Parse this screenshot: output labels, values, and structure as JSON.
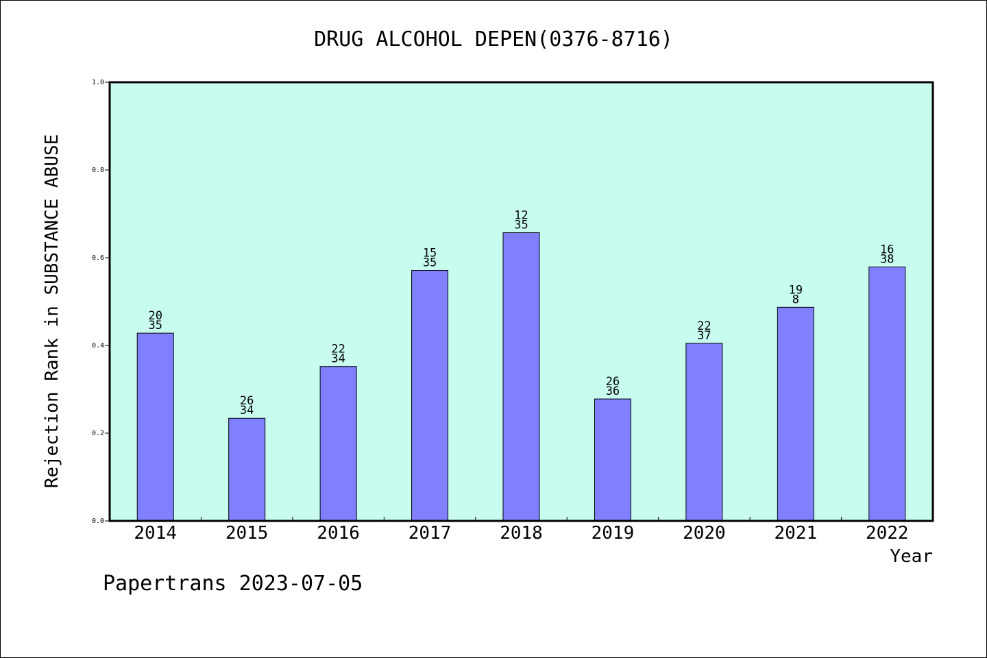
{
  "footer": "Papertrans 2023-07-05",
  "colors": {
    "plot_background": "#c8fcef",
    "bar_fill": "#8080ff",
    "bar_stroke": "#000000",
    "axis": "#000000"
  },
  "chart_data": {
    "type": "bar",
    "title": "DRUG ALCOHOL DEPEN(0376-8716)",
    "xlabel": "Year",
    "ylabel": "Rejection Rank in SUBSTANCE ABUSE",
    "ylim": [
      0,
      1.0
    ],
    "yticks": [
      "0.0",
      "0.2",
      "0.4",
      "0.6",
      "0.8",
      "1.0"
    ],
    "grid": false,
    "categories": [
      "2014",
      "2015",
      "2016",
      "2017",
      "2018",
      "2019",
      "2020",
      "2021",
      "2022"
    ],
    "values": [
      0.428,
      0.234,
      0.352,
      0.571,
      0.657,
      0.278,
      0.405,
      0.487,
      0.579
    ],
    "labels_top": [
      "20",
      "26",
      "22",
      "15",
      "12",
      "26",
      "22",
      "19",
      "16"
    ],
    "labels_bottom": [
      "35",
      "34",
      "34",
      "35",
      "35",
      "36",
      "37",
      "8",
      "38"
    ]
  }
}
